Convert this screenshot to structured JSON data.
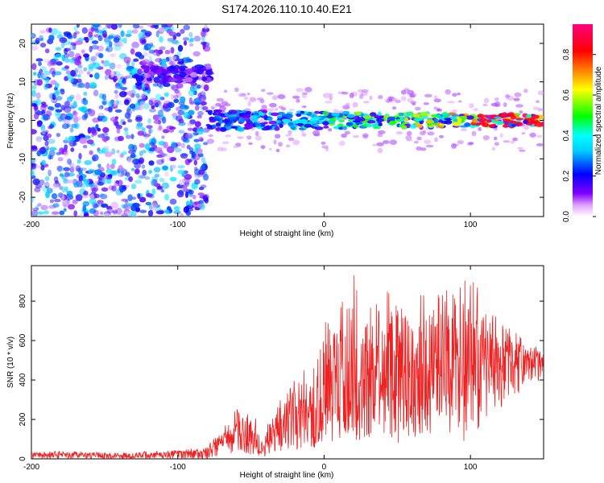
{
  "title": "S174.2026.110.10.40.E21",
  "chart_data": [
    {
      "type": "heatmap",
      "title": "S174.2026.110.10.40.E21",
      "xlabel": "Height of straight line (km)",
      "ylabel": "Frequency (Hz)",
      "xlim": [
        -200,
        150
      ],
      "ylim": [
        -25,
        25
      ],
      "xticks": [
        -200,
        -100,
        0,
        100
      ],
      "yticks": [
        -20,
        -10,
        0,
        10,
        20
      ],
      "colorbar": {
        "label": "Normalized spectral amplitude",
        "range": [
          0,
          0.95
        ],
        "ticks": [
          0.0,
          0.2,
          0.4,
          0.6,
          0.8
        ],
        "colormap": [
          "#ff00ff",
          "#8000ff",
          "#0000ff",
          "#00ffff",
          "#00ff00",
          "#ffff00",
          "#ff8000",
          "#ff0000",
          "#ff0080"
        ]
      },
      "features": [
        {
          "name": "diffuse noise",
          "x_range": [
            -200,
            -80
          ],
          "freq_range": [
            -25,
            25
          ],
          "amplitude": 0.05
        },
        {
          "name": "early band",
          "x_range": [
            -130,
            -78
          ],
          "freq": 12,
          "amplitude": 0.15
        },
        {
          "name": "main signal band",
          "x_range": [
            -80,
            150
          ],
          "freq": 0,
          "amplitude_range": [
            0.2,
            0.95
          ]
        }
      ]
    },
    {
      "type": "line",
      "xlabel": "Height of straight line (km)",
      "ylabel": "SNR (10 * v/v)",
      "xlim": [
        -200,
        150
      ],
      "ylim": [
        0,
        980
      ],
      "xticks": [
        -200,
        -100,
        0,
        100
      ],
      "yticks": [
        0,
        200,
        400,
        600,
        800
      ],
      "series": [
        {
          "name": "SNR",
          "color": "#ee2222",
          "x": [
            -200,
            -180,
            -160,
            -140,
            -120,
            -100,
            -80,
            -70,
            -60,
            -50,
            -40,
            -30,
            -20,
            -10,
            0,
            10,
            20,
            30,
            40,
            50,
            60,
            70,
            80,
            90,
            100,
            110,
            120,
            130,
            140,
            150
          ],
          "y": [
            20,
            20,
            22,
            18,
            20,
            25,
            30,
            80,
            120,
            100,
            60,
            150,
            200,
            250,
            300,
            350,
            380,
            400,
            420,
            380,
            400,
            420,
            450,
            420,
            400,
            450,
            470,
            480,
            490,
            500
          ],
          "y_min": [
            0,
            0,
            0,
            0,
            0,
            0,
            0,
            20,
            30,
            20,
            10,
            40,
            50,
            50,
            60,
            80,
            80,
            100,
            120,
            80,
            100,
            120,
            150,
            100,
            80,
            200,
            250,
            300,
            380,
            400
          ],
          "y_max": [
            35,
            40,
            35,
            30,
            40,
            45,
            60,
            150,
            260,
            240,
            170,
            300,
            420,
            520,
            680,
            880,
            960,
            830,
            880,
            800,
            820,
            850,
            890,
            900,
            950,
            800,
            700,
            650,
            580,
            560
          ]
        }
      ]
    }
  ]
}
